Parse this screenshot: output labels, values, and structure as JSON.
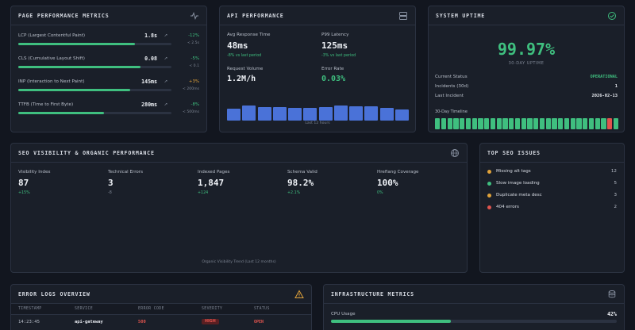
{
  "page_performance": {
    "title": "PAGE PERFORMANCE METRICS",
    "metrics": [
      {
        "label": "LCP (Largest Contentful Paint)",
        "value": "1.8s",
        "change": "-12%",
        "target": "< 2.5s",
        "progress": 0.76,
        "change_color": "green"
      },
      {
        "label": "CLS (Cumulative Layout Shift)",
        "value": "0.08",
        "change": "-5%",
        "target": "< 0.1",
        "progress": 0.8,
        "change_color": "green"
      },
      {
        "label": "INP (Interaction to Next Paint)",
        "value": "145ms",
        "change": "+3%",
        "target": "< 200ms",
        "progress": 0.73,
        "change_color": "amber"
      },
      {
        "label": "TTFB (Time to First Byte)",
        "value": "280ms",
        "change": "-8%",
        "target": "< 500ms",
        "progress": 0.56,
        "change_color": "green"
      }
    ]
  },
  "api_performance": {
    "title": "API PERFORMANCE",
    "avg_label": "Avg Response Time",
    "avg_value": "48ms",
    "avg_change": "-8% vs last period",
    "p99_label": "P99 Latency",
    "p99_value": "125ms",
    "p99_change": "-3% vs last period",
    "req_label": "Request Volume",
    "req_value": "1.2M/h",
    "err_label": "Error Rate",
    "err_value": "0.03%",
    "chart_caption": "Last 12 hours",
    "bars": [
      0.62,
      0.78,
      0.72,
      0.72,
      0.66,
      0.68,
      0.72,
      0.8,
      0.74,
      0.74,
      0.66,
      0.6
    ]
  },
  "system_uptime": {
    "title": "SYSTEM UPTIME",
    "value": "99.97%",
    "sub": "30-DAY UPTIME",
    "status_label": "Current Status",
    "status_value": "OPERATIONAL",
    "incidents_label": "Incidents (30d)",
    "incidents_value": "1",
    "last_label": "Last Incident",
    "last_value": "2026-02-13",
    "timeline_label": "30-Day Timeline",
    "timeline": [
      1,
      1,
      1,
      1,
      1,
      1,
      1,
      1,
      1,
      1,
      1,
      1,
      1,
      1,
      1,
      1,
      1,
      1,
      1,
      1,
      1,
      1,
      1,
      1,
      1,
      1,
      1,
      1,
      0,
      1
    ],
    "colors": {
      "ok": "#3fbf7f",
      "bad": "#e0544e"
    }
  },
  "seo_visibility": {
    "title": "SEO VISIBILITY & ORGANIC PERFORMANCE",
    "stats": [
      {
        "label": "Visibility Index",
        "value": "87",
        "delta": "+15%",
        "delta_color": "green"
      },
      {
        "label": "Technical Errors",
        "value": "3",
        "delta": "-8",
        "delta_color": "muted"
      },
      {
        "label": "Indexed Pages",
        "value": "1,847",
        "delta": "+124",
        "delta_color": "green"
      },
      {
        "label": "Schema Valid",
        "value": "98.2%",
        "delta": "+2.1%",
        "delta_color": "green"
      },
      {
        "label": "Hreflang Coverage",
        "value": "100%",
        "delta": "0%",
        "delta_color": "green"
      }
    ],
    "chart_caption": "Organic Visibility Trend (Last 12 months)"
  },
  "seo_issues": {
    "title": "TOP SEO ISSUES",
    "items": [
      {
        "label": "Missing alt tags",
        "count": "12",
        "color": "#e0a23a"
      },
      {
        "label": "Slow image loading",
        "count": "5",
        "color": "#3fbf7f"
      },
      {
        "label": "Duplicate meta desc",
        "count": "3",
        "color": "#e0a23a"
      },
      {
        "label": "404 errors",
        "count": "2",
        "color": "#e0544e"
      }
    ]
  },
  "error_logs": {
    "title": "ERROR LOGS OVERVIEW",
    "columns": [
      "TIMESTAMP",
      "SERVICE",
      "ERROR CODE",
      "SEVERITY",
      "STATUS"
    ],
    "rows": [
      {
        "timestamp": "14:23:45",
        "service": "api-gateway",
        "code": "500",
        "severity": "HIGH",
        "status": "OPEN"
      }
    ]
  },
  "infrastructure": {
    "title": "INFRASTRUCTURE METRICS",
    "cpu_label": "CPU Usage",
    "cpu_value": "42%",
    "cpu_progress": 0.42
  }
}
